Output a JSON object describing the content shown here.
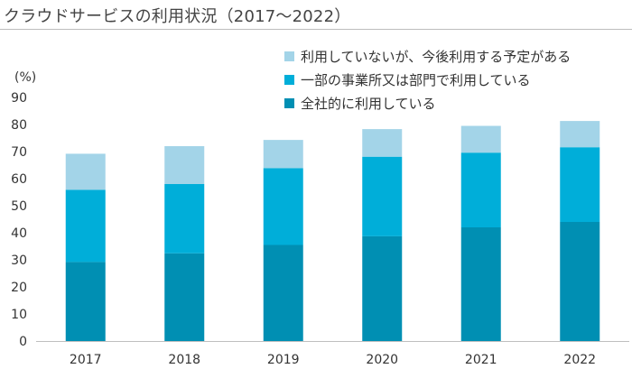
{
  "title": "クラウドサービスの利用状況（2017～2022）",
  "chart_data": {
    "type": "bar",
    "stacked": true,
    "ylabel": "(%)",
    "ylim": [
      0,
      90
    ],
    "yticks": [
      0,
      10,
      20,
      30,
      40,
      50,
      60,
      70,
      80,
      90
    ],
    "categories": [
      "2017",
      "2018",
      "2019",
      "2020",
      "2021",
      "2022"
    ],
    "series": [
      {
        "name": "全社的に利用している",
        "color": "#008fb3",
        "values": [
          29.2,
          32.4,
          35.5,
          38.7,
          42.0,
          44.0
        ]
      },
      {
        "name": "一部の事業所又は部門で利用している",
        "color": "#00aed9",
        "values": [
          26.7,
          25.6,
          28.4,
          29.4,
          27.6,
          27.6
        ]
      },
      {
        "name": "利用していないが、今後利用する予定がある",
        "color": "#a3d4e8",
        "values": [
          13.3,
          14.0,
          10.4,
          10.2,
          9.9,
          9.7
        ]
      }
    ],
    "legend_order": [
      2,
      1,
      0
    ],
    "grid": false,
    "legend_position": "top-right"
  }
}
